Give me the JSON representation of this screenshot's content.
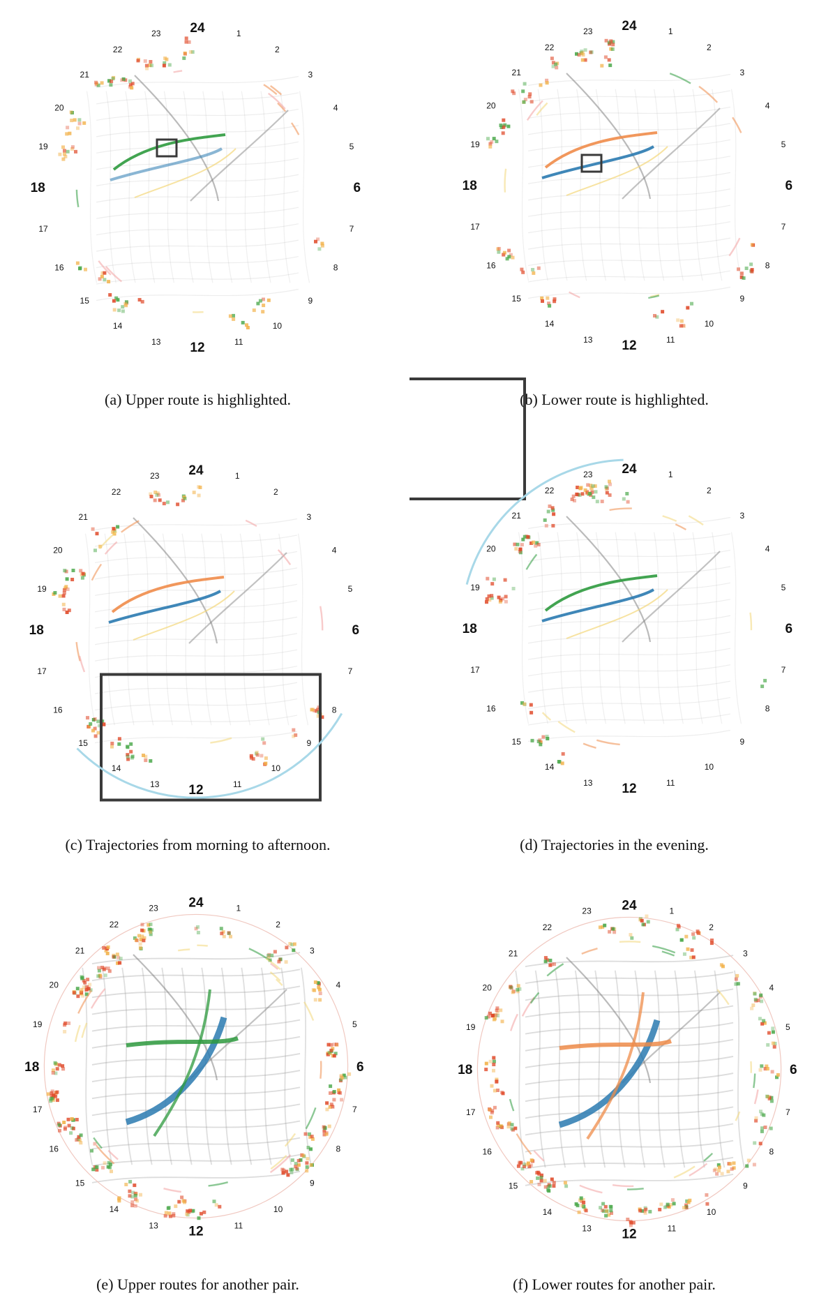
{
  "figure": {
    "panels": [
      {
        "id": "a",
        "caption": "(a)  Upper route is highlighted.",
        "style": "sparse",
        "highlight": "upper",
        "zoom": "none",
        "hours": [
          "24",
          "1",
          "2",
          "3",
          "4",
          "5",
          "6",
          "7",
          "8",
          "9",
          "10",
          "11",
          "12",
          "13",
          "14",
          "15",
          "16",
          "17",
          "18",
          "19",
          "20",
          "21",
          "22",
          "23"
        ]
      },
      {
        "id": "b",
        "caption": "(b)  Lower route is highlighted.",
        "style": "sparse",
        "highlight": "lower",
        "zoom": "none",
        "hours": [
          "24",
          "1",
          "2",
          "3",
          "4",
          "5",
          "6",
          "7",
          "8",
          "9",
          "10",
          "11",
          "12",
          "13",
          "14",
          "15",
          "16",
          "17",
          "18",
          "19",
          "20",
          "21",
          "22",
          "23"
        ]
      },
      {
        "id": "c",
        "caption": "(c)  Trajectories from morning to afternoon.",
        "style": "sparse",
        "highlight": "orange",
        "zoom": "bottom",
        "hours": [
          "24",
          "1",
          "2",
          "3",
          "4",
          "5",
          "6",
          "7",
          "8",
          "9",
          "10",
          "11",
          "12",
          "13",
          "14",
          "15",
          "16",
          "17",
          "18",
          "19",
          "20",
          "21",
          "22",
          "23"
        ]
      },
      {
        "id": "d",
        "caption": "(d)  Trajectories in the evening.",
        "style": "sparse",
        "highlight": "green",
        "zoom": "topleft",
        "hours": [
          "24",
          "1",
          "2",
          "3",
          "4",
          "5",
          "6",
          "7",
          "8",
          "9",
          "10",
          "11",
          "12",
          "13",
          "14",
          "15",
          "16",
          "17",
          "18",
          "19",
          "20",
          "21",
          "22",
          "23"
        ]
      },
      {
        "id": "e",
        "caption": "(e)  Upper routes for another pair.",
        "style": "dense",
        "highlight": "green",
        "zoom": "none",
        "hours": [
          "24",
          "1",
          "2",
          "3",
          "4",
          "5",
          "6",
          "7",
          "8",
          "9",
          "10",
          "11",
          "12",
          "13",
          "14",
          "15",
          "16",
          "17",
          "18",
          "19",
          "20",
          "21",
          "22",
          "23"
        ]
      },
      {
        "id": "f",
        "caption": "(f)  Lower routes for another pair.",
        "style": "dense",
        "highlight": "orange",
        "zoom": "none",
        "hours": [
          "24",
          "1",
          "2",
          "3",
          "4",
          "5",
          "6",
          "7",
          "8",
          "9",
          "10",
          "11",
          "12",
          "13",
          "14",
          "15",
          "16",
          "17",
          "18",
          "19",
          "20",
          "21",
          "22",
          "23"
        ]
      }
    ],
    "colors": {
      "route_blue": "#2a7ab0",
      "route_green": "#2e9a3e",
      "route_orange": "#ef8c4a",
      "route_yellow": "#f3d77a",
      "ring_light_blue": "#a8d8e8",
      "grid_gray": "#9a9a9a",
      "glyph_red": "#e04a2a",
      "glyph_green": "#4aa84a",
      "frame": "#3a3a3a"
    }
  }
}
